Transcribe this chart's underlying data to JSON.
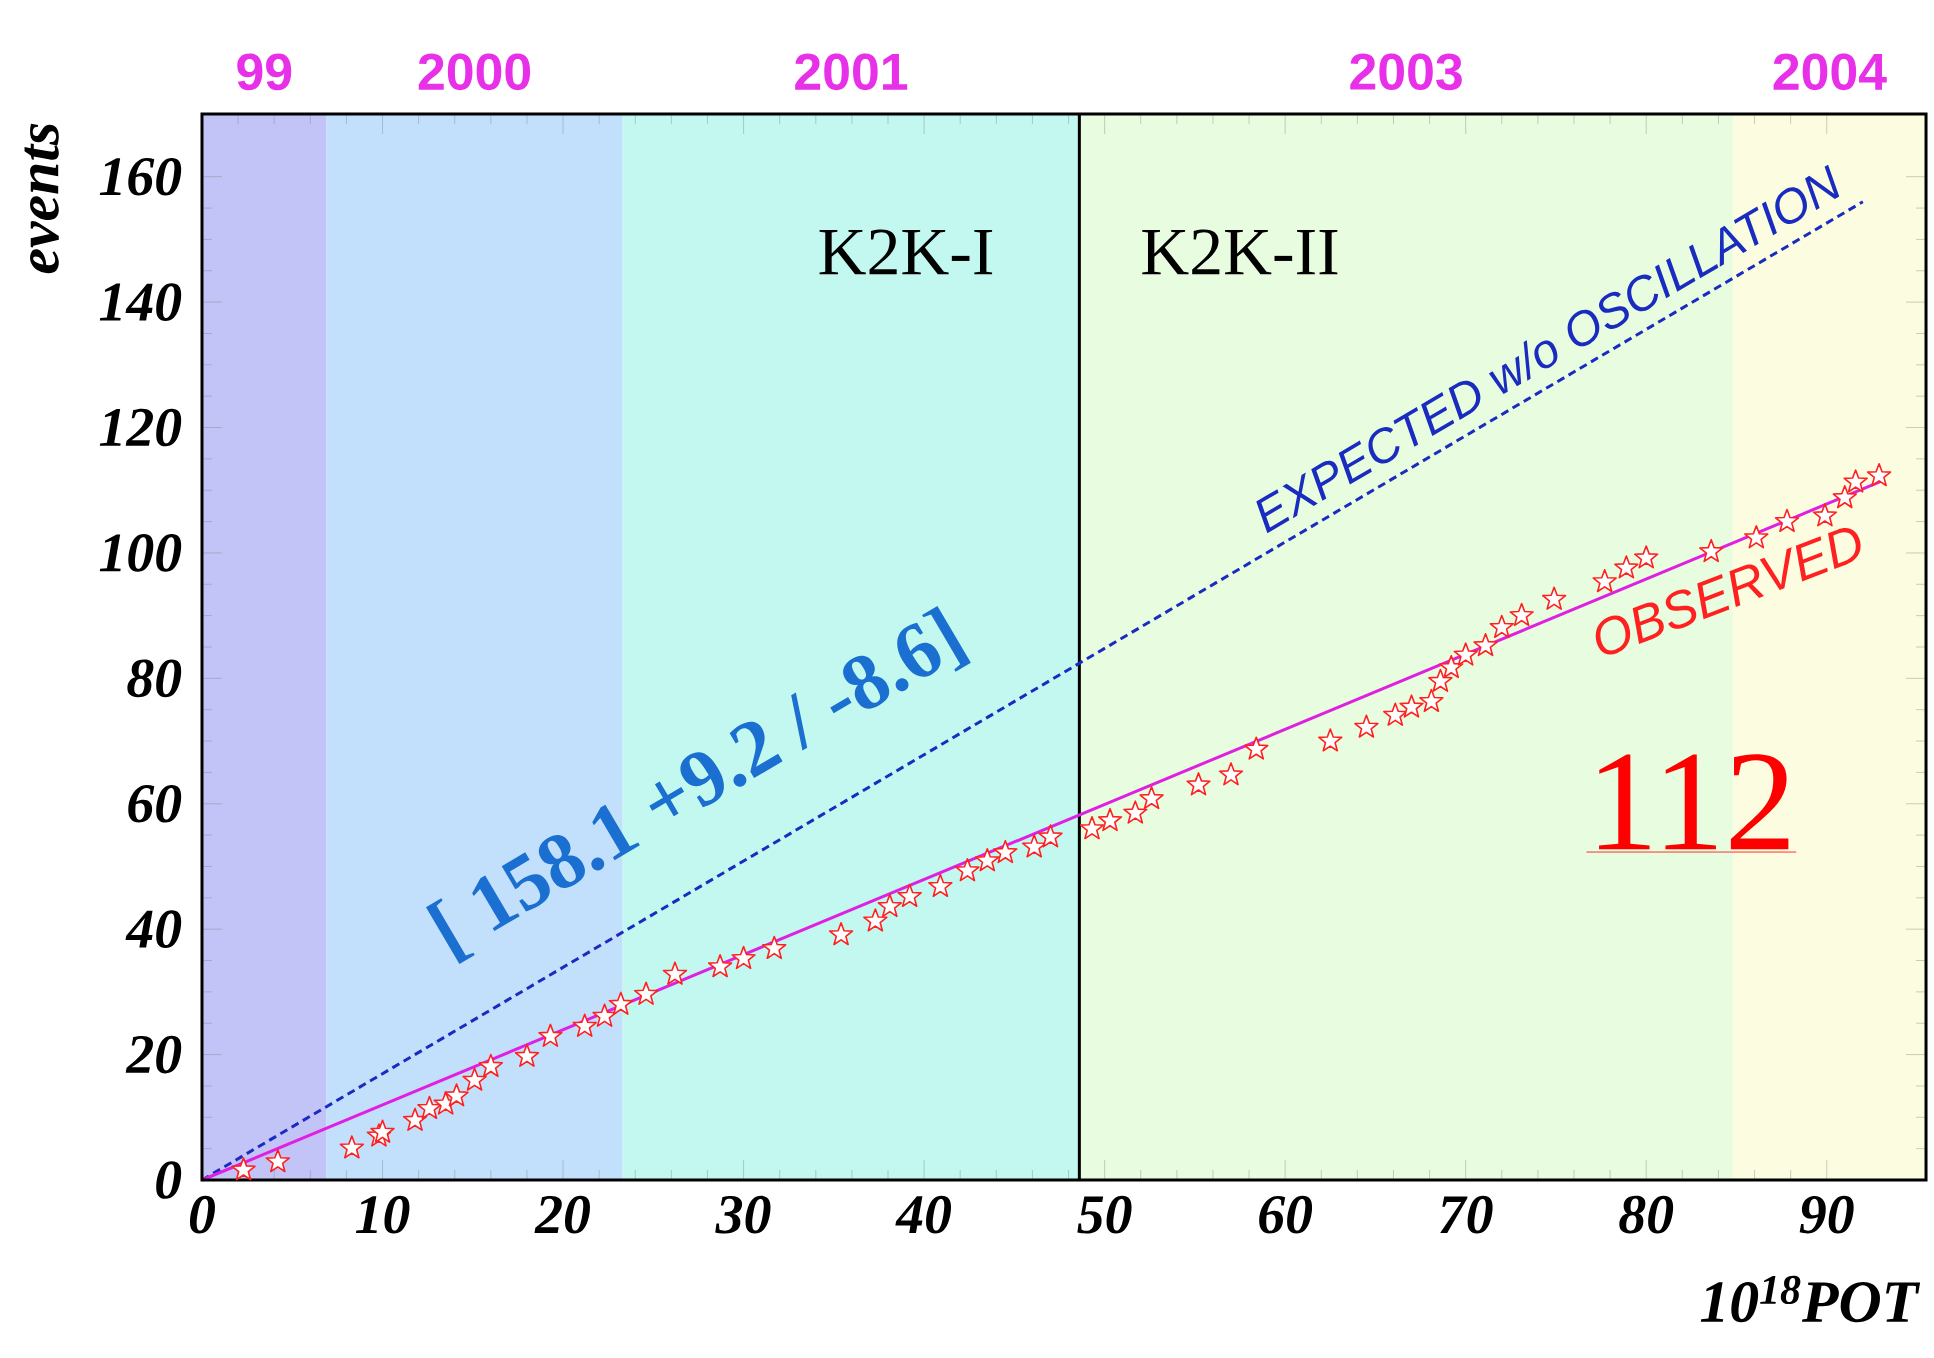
{
  "chart_data": {
    "type": "scatter",
    "xlabel": "10$^{18}$POT",
    "ylabel": "events",
    "xlim": [
      0,
      95.5
    ],
    "ylim": [
      0,
      170
    ],
    "xticks": [
      0,
      10,
      20,
      30,
      40,
      50,
      60,
      70,
      80,
      90
    ],
    "yticks": [
      0,
      20,
      40,
      60,
      80,
      100,
      120,
      140,
      160
    ],
    "annotations": [
      "K2K-I",
      "K2K-II",
      "[ 158.1 +9.2 / -8.6]",
      "112"
    ],
    "bands": [
      {
        "axis": "x",
        "from": 0,
        "to": 6.9,
        "label": "99",
        "color": "#c2c4f8"
      },
      {
        "axis": "x",
        "from": 6.9,
        "to": 23.3,
        "label": "2000",
        "color": "#c2e0fc"
      },
      {
        "axis": "x",
        "from": 23.3,
        "to": 48.6,
        "label": "2001",
        "color": "#c2f8f0"
      },
      {
        "axis": "x",
        "from": 48.6,
        "to": 84.8,
        "label": "2003",
        "color": "#e8fce0"
      },
      {
        "axis": "x",
        "from": 84.8,
        "to": 95.5,
        "label": "2004",
        "color": "#fcfce0"
      }
    ],
    "ref_lines": [
      {
        "axis": "x",
        "value": 48.6,
        "color": "#000000"
      }
    ],
    "series": [
      {
        "name": "OBSERVED",
        "color": "#ff2020",
        "marker": "star",
        "x": [
          2.3,
          4.2,
          8.3,
          9.8,
          10.0,
          11.8,
          12.6,
          13.5,
          14.1,
          15.1,
          16.0,
          18.0,
          19.3,
          21.2,
          22.3,
          23.2,
          24.6,
          26.2,
          28.7,
          30.0,
          31.7,
          35.4,
          37.3,
          38.1,
          39.2,
          40.9,
          42.4,
          43.5,
          44.5,
          46.1,
          47.0,
          49.3,
          50.3,
          51.7,
          52.6,
          55.2,
          57.0,
          58.4,
          62.5,
          64.5,
          66.1,
          67.0,
          68.1,
          68.6,
          69.2,
          70.0,
          71.1,
          72.0,
          73.1,
          74.9,
          77.7,
          78.9,
          80.0,
          83.6,
          86.1,
          87.8,
          89.9,
          91.0,
          91.6,
          92.9
        ],
        "values": [
          1.6,
          2.9,
          5.1,
          7.0,
          7.6,
          9.5,
          11.4,
          12.1,
          13.4,
          15.9,
          18.1,
          19.7,
          22.9,
          24.5,
          26.1,
          28.0,
          29.6,
          32.8,
          34.0,
          35.3,
          36.9,
          39.1,
          41.3,
          43.6,
          45.2,
          46.8,
          49.3,
          50.9,
          52.2,
          53.1,
          54.7,
          56.0,
          57.3,
          58.5,
          60.8,
          63.0,
          64.6,
          68.7,
          70.0,
          72.2,
          74.1,
          75.4,
          76.3,
          79.5,
          81.7,
          83.7,
          85.2,
          88.1,
          90.0,
          92.6,
          95.4,
          97.6,
          99.2,
          100.2,
          102.4,
          105.0,
          105.9,
          108.8,
          111.3,
          112.3
        ]
      },
      {
        "name": "EXPECTED w/o OSCILLATION",
        "type": "line",
        "color": "#1a2bbf",
        "line_style": "dashed",
        "marker": "none",
        "x": [
          0,
          92
        ],
        "values": [
          0,
          156
        ]
      },
      {
        "type": "line",
        "color": "#e020e0",
        "line_style": "solid",
        "marker": "none",
        "x": [
          0,
          93
        ],
        "values": [
          0,
          111.4
        ]
      }
    ]
  }
}
